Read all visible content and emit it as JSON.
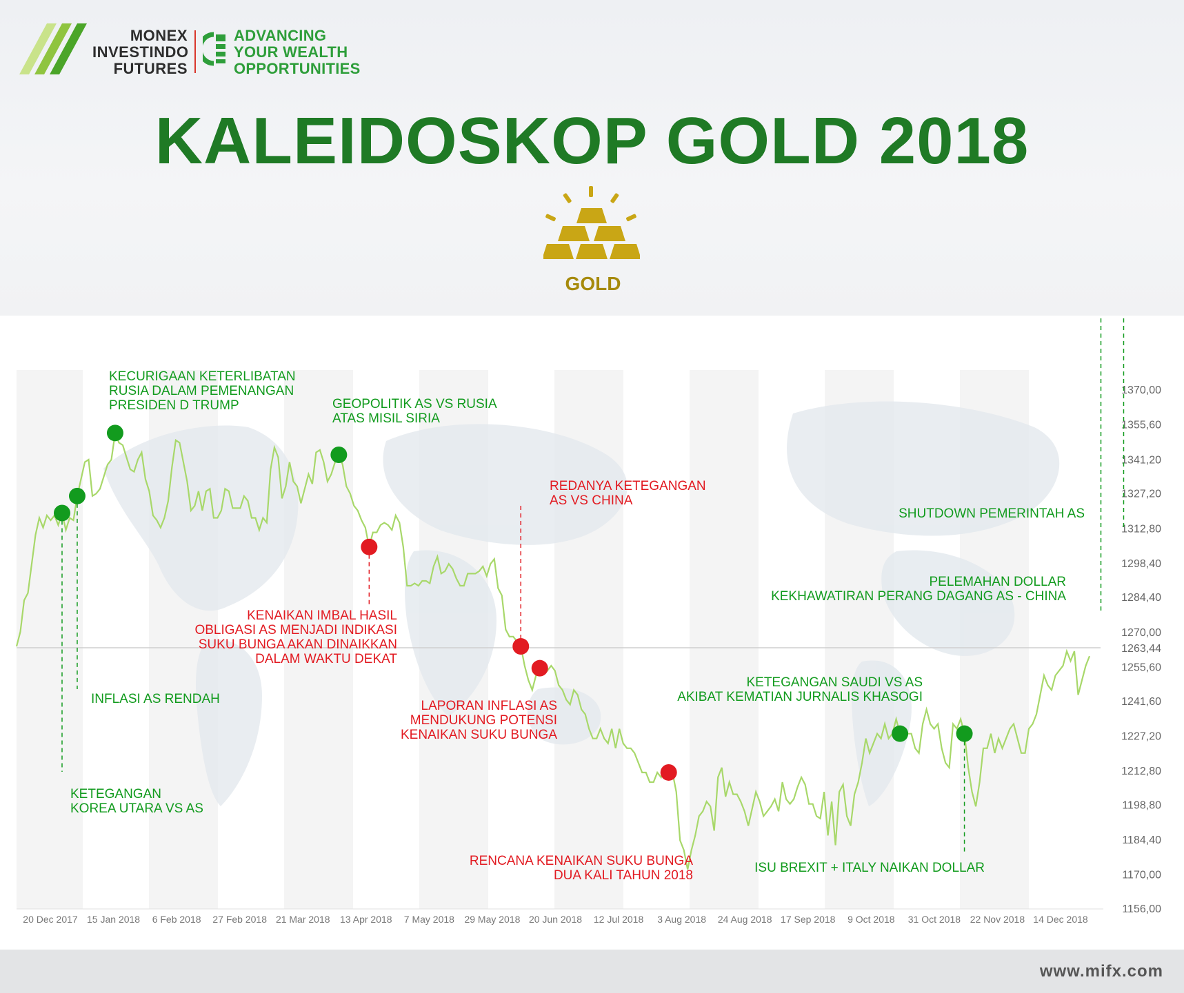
{
  "brand": {
    "name_lines": [
      "MONEX",
      "INVESTINDO",
      "FUTURES"
    ],
    "tagline_lines": [
      "ADVANCING",
      "YOUR WEALTH",
      "OPPORTUNITIES"
    ]
  },
  "title": "KALEIDOSKOP GOLD 2018",
  "icon_label": "GOLD",
  "footer_url": "www.mifx.com",
  "colors": {
    "title_green": "#1f7a25",
    "line": "#a8d86a",
    "positive": "#129b1e",
    "negative": "#e21b22",
    "gold": "#c9a615"
  },
  "chart_data": {
    "type": "line",
    "ylim": [
      1156,
      1370
    ],
    "y_ticks": [
      "1370,00",
      "1355,60",
      "1341,20",
      "1327,20",
      "1312,80",
      "1298,40",
      "1284,40",
      "1270,00",
      "1263,44",
      "1255,60",
      "1241,60",
      "1227,20",
      "1212,80",
      "1198,80",
      "1184,40",
      "1170,00",
      "1156,00"
    ],
    "x_ticks": [
      "20 Dec 2017",
      "15 Jan 2018",
      "6 Feb 2018",
      "27 Feb 2018",
      "21 Mar 2018",
      "13 Apr 2018",
      "7 May 2018",
      "29 May 2018",
      "20 Jun 2018",
      "12 Jul 2018",
      "3 Aug 2018",
      "24 Aug 2018",
      "17 Sep 2018",
      "9 Oct 2018",
      "31 Oct 2018",
      "22 Nov 2018",
      "14 Dec 2018"
    ],
    "reference_line": 1263.44,
    "series": [
      {
        "values": [
          1264,
          1270,
          1283,
          1286,
          1298,
          1310,
          1317,
          1313,
          1318,
          1316,
          1318,
          1314,
          1319,
          1312,
          1317,
          1316,
          1326,
          1333,
          1340,
          1341,
          1326,
          1327,
          1329,
          1334,
          1339,
          1341,
          1352,
          1348,
          1347,
          1342,
          1337,
          1336,
          1341,
          1344,
          1333,
          1328,
          1318,
          1316,
          1313,
          1317,
          1324,
          1338,
          1349,
          1348,
          1340,
          1332,
          1320,
          1322,
          1328,
          1320,
          1328,
          1329,
          1317,
          1317,
          1320,
          1329,
          1328,
          1321,
          1321,
          1321,
          1326,
          1324,
          1317,
          1317,
          1312,
          1317,
          1315,
          1337,
          1346,
          1342,
          1325,
          1330,
          1340,
          1332,
          1330,
          1323,
          1329,
          1335,
          1331,
          1344,
          1345,
          1340,
          1332,
          1335,
          1340,
          1343,
          1339,
          1330,
          1327,
          1322,
          1320,
          1316,
          1313,
          1305,
          1311,
          1311,
          1314,
          1315,
          1314,
          1312,
          1318,
          1315,
          1305,
          1289,
          1289,
          1290,
          1289,
          1291,
          1291,
          1290,
          1297,
          1301,
          1294,
          1295,
          1298,
          1296,
          1292,
          1289,
          1289,
          1294,
          1294,
          1294,
          1295,
          1297,
          1293,
          1298,
          1300,
          1288,
          1285,
          1271,
          1268,
          1268,
          1266,
          1264,
          1256,
          1250,
          1246,
          1252,
          1255,
          1257,
          1254,
          1256,
          1254,
          1248,
          1246,
          1242,
          1240,
          1246,
          1244,
          1238,
          1236,
          1230,
          1226,
          1226,
          1230,
          1226,
          1224,
          1230,
          1222,
          1230,
          1224,
          1222,
          1222,
          1220,
          1216,
          1212,
          1212,
          1208,
          1208,
          1212,
          1210,
          1214,
          1212,
          1212,
          1204,
          1184,
          1180,
          1172,
          1180,
          1186,
          1194,
          1196,
          1200,
          1198,
          1188,
          1210,
          1214,
          1202,
          1208,
          1203,
          1203,
          1200,
          1196,
          1190,
          1197,
          1204,
          1200,
          1194,
          1196,
          1198,
          1201,
          1196,
          1208,
          1201,
          1199,
          1201,
          1206,
          1210,
          1207,
          1199,
          1199,
          1194,
          1193,
          1204,
          1186,
          1200,
          1182,
          1204,
          1207,
          1194,
          1190,
          1203,
          1208,
          1216,
          1226,
          1220,
          1224,
          1228,
          1226,
          1232,
          1226,
          1228,
          1234,
          1228,
          1226,
          1228,
          1228,
          1222,
          1220,
          1232,
          1238,
          1232,
          1230,
          1232,
          1222,
          1216,
          1214,
          1232,
          1230,
          1234,
          1228,
          1214,
          1204,
          1198,
          1208,
          1222,
          1222,
          1228,
          1220,
          1226,
          1222,
          1226,
          1230,
          1232,
          1226,
          1220,
          1220,
          1230,
          1232,
          1236,
          1244,
          1252,
          1248,
          1246,
          1252,
          1254,
          1256,
          1262,
          1258,
          1262,
          1244,
          1250,
          1256,
          1260
        ]
      }
    ],
    "annotations": [
      {
        "kind": "positive",
        "label": [
          "KETEGANGAN",
          "KOREA UTARA VS  AS"
        ]
      },
      {
        "kind": "positive",
        "label": [
          "INFLASI AS RENDAH"
        ]
      },
      {
        "kind": "positive",
        "label": [
          "KECURIGAAN KETERLIBATAN",
          "RUSIA DALAM PEMENANGAN",
          "PRESIDEN D TRUMP"
        ]
      },
      {
        "kind": "positive",
        "label": [
          "GEOPOLITIK AS VS RUSIA",
          "ATAS MISIL SIRIA"
        ]
      },
      {
        "kind": "negative",
        "label": [
          "KENAIKAN IMBAL HASIL",
          "OBLIGASI AS MENJADI INDIKASI",
          "SUKU BUNGA AKAN DINAIKKAN",
          "DALAM WAKTU DEKAT"
        ]
      },
      {
        "kind": "negative",
        "label": [
          "REDANYA KETEGANGAN",
          "AS VS CHINA"
        ]
      },
      {
        "kind": "negative",
        "label": [
          "LAPORAN INFLASI AS",
          "MENDUKUNG POTENSI",
          "KENAIKAN SUKU BUNGA"
        ]
      },
      {
        "kind": "negative",
        "label": [
          "RENCANA KENAIKAN SUKU BUNGA",
          "DUA KALI TAHUN 2018"
        ]
      },
      {
        "kind": "positive",
        "label": [
          "KETEGANGAN SAUDI VS AS",
          "AKIBAT KEMATIAN JURNALIS KHASOGI"
        ]
      },
      {
        "kind": "positive",
        "label": [
          "ISU BREXIT + ITALY NAIKAN DOLLAR"
        ]
      },
      {
        "kind": "positive",
        "label": [
          "PELEMAHAN DOLLAR",
          "KEKHAWATIRAN PERANG DAGANG AS - CHINA"
        ]
      },
      {
        "kind": "positive",
        "label": [
          "SHUTDOWN PEMERINTAH AS"
        ]
      }
    ]
  }
}
